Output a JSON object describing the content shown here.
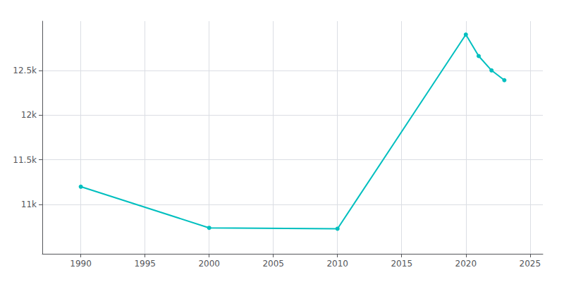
{
  "chart_data": {
    "type": "line",
    "x": [
      1990,
      2000,
      2010,
      2020,
      2021,
      2022,
      2023
    ],
    "values": [
      11200,
      10740,
      10730,
      12900,
      12660,
      12500,
      12390
    ],
    "color": "#00BFBF",
    "marker": "circle",
    "xlim": [
      1987,
      2026
    ],
    "xticks": [
      1990,
      1995,
      2000,
      2005,
      2010,
      2015,
      2020,
      2025
    ],
    "ylim": [
      10450,
      13050
    ],
    "yticks": [
      {
        "value": 11000,
        "label": "11k"
      },
      {
        "value": 11500,
        "label": "11.5k"
      },
      {
        "value": 12000,
        "label": "12k"
      },
      {
        "value": 12500,
        "label": "12.5k"
      }
    ],
    "grid": true
  }
}
